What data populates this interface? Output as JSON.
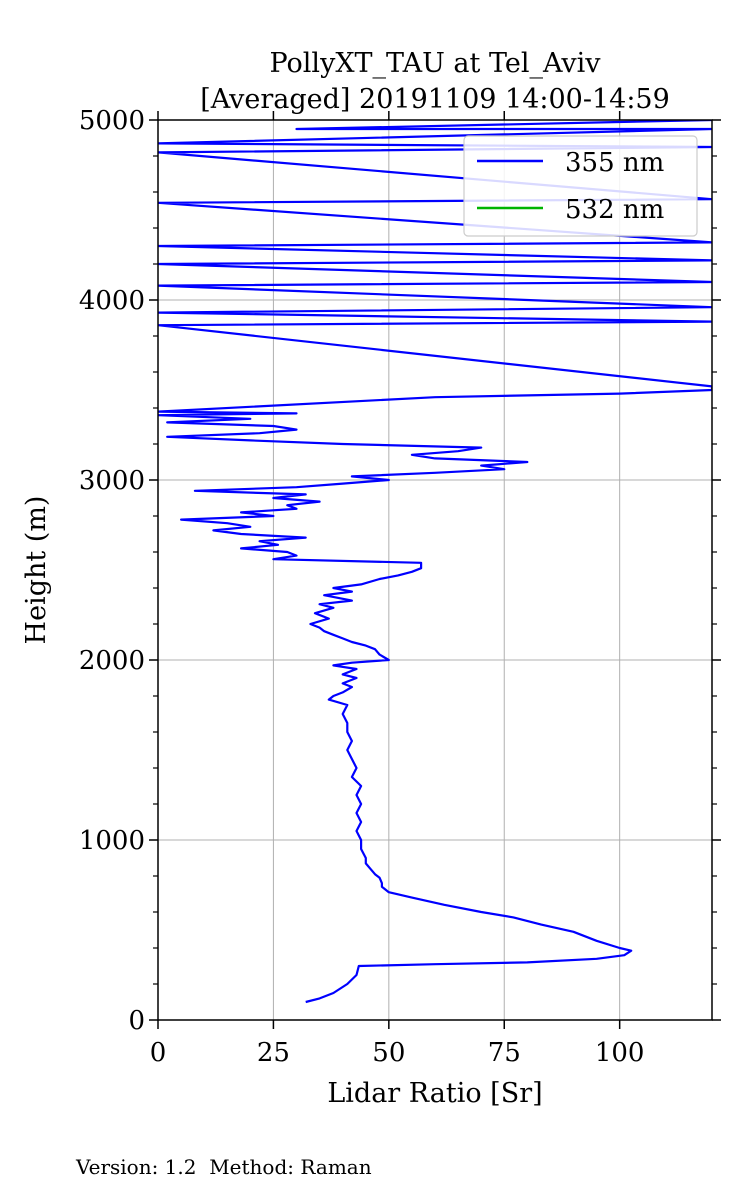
{
  "chart_data": {
    "type": "line",
    "title_line1": "PollyXT_TAU at Tel_Aviv",
    "title_line2": "[Averaged] 20191109 14:00-14:59",
    "xlabel": "Lidar Ratio [Sr]",
    "ylabel": "Height (m)",
    "xlim": [
      0,
      120
    ],
    "ylim": [
      0,
      5000
    ],
    "xticks": [
      0,
      25,
      50,
      75,
      100
    ],
    "xtick_labels": [
      "0",
      "25",
      "50",
      "75",
      "100"
    ],
    "yticks": [
      0,
      1000,
      2000,
      3000,
      4000,
      5000
    ],
    "ytick_labels": [
      "0",
      "1000",
      "2000",
      "3000",
      "4000",
      "5000"
    ],
    "grid": true,
    "legend_position": "top-right",
    "series": [
      {
        "name": "355 nm",
        "color": "#0000ff",
        "points": [
          [
            32,
            100
          ],
          [
            35,
            120
          ],
          [
            38,
            150
          ],
          [
            41,
            200
          ],
          [
            43,
            250
          ],
          [
            43.5,
            300
          ],
          [
            60,
            310
          ],
          [
            80,
            320
          ],
          [
            95,
            340
          ],
          [
            101,
            360
          ],
          [
            102.5,
            385
          ],
          [
            100,
            400
          ],
          [
            95,
            440
          ],
          [
            90,
            490
          ],
          [
            83,
            530
          ],
          [
            77,
            570
          ],
          [
            70,
            600
          ],
          [
            62,
            640
          ],
          [
            55,
            680
          ],
          [
            50,
            710
          ],
          [
            48.5,
            740
          ],
          [
            48.5,
            760
          ],
          [
            48,
            790
          ],
          [
            47,
            810
          ],
          [
            46,
            840
          ],
          [
            45,
            870
          ],
          [
            45,
            900
          ],
          [
            44,
            950
          ],
          [
            44,
            1000
          ],
          [
            43,
            1050
          ],
          [
            44,
            1100
          ],
          [
            43,
            1150
          ],
          [
            44,
            1200
          ],
          [
            43,
            1250
          ],
          [
            44,
            1300
          ],
          [
            42,
            1350
          ],
          [
            43,
            1400
          ],
          [
            42,
            1450
          ],
          [
            41,
            1500
          ],
          [
            42,
            1550
          ],
          [
            41,
            1600
          ],
          [
            41,
            1650
          ],
          [
            40,
            1700
          ],
          [
            41,
            1750
          ],
          [
            37,
            1780
          ],
          [
            38,
            1800
          ],
          [
            40,
            1820
          ],
          [
            42,
            1850
          ],
          [
            40,
            1870
          ],
          [
            43,
            1900
          ],
          [
            40,
            1920
          ],
          [
            43,
            1950
          ],
          [
            38,
            1970
          ],
          [
            42,
            1985
          ],
          [
            50,
            2000
          ],
          [
            48,
            2030
          ],
          [
            47,
            2060
          ],
          [
            45,
            2080
          ],
          [
            42,
            2100
          ],
          [
            40,
            2120
          ],
          [
            38,
            2140
          ],
          [
            36,
            2160
          ],
          [
            35,
            2180
          ],
          [
            33,
            2200
          ],
          [
            37,
            2230
          ],
          [
            34,
            2260
          ],
          [
            38,
            2290
          ],
          [
            35,
            2310
          ],
          [
            42,
            2330
          ],
          [
            36,
            2360
          ],
          [
            42,
            2380
          ],
          [
            38,
            2400
          ],
          [
            44,
            2420
          ],
          [
            48,
            2450
          ],
          [
            52,
            2470
          ],
          [
            55,
            2490
          ],
          [
            57,
            2510
          ],
          [
            57,
            2540
          ],
          [
            25,
            2560
          ],
          [
            30,
            2580
          ],
          [
            28,
            2600
          ],
          [
            18,
            2620
          ],
          [
            26,
            2640
          ],
          [
            22,
            2660
          ],
          [
            32,
            2680
          ],
          [
            18,
            2700
          ],
          [
            12,
            2720
          ],
          [
            20,
            2740
          ],
          [
            15,
            2760
          ],
          [
            5,
            2780
          ],
          [
            25,
            2800
          ],
          [
            18,
            2820
          ],
          [
            30,
            2840
          ],
          [
            28,
            2860
          ],
          [
            35,
            2880
          ],
          [
            25,
            2900
          ],
          [
            32,
            2920
          ],
          [
            8,
            2940
          ],
          [
            30,
            2960
          ],
          [
            40,
            2980
          ],
          [
            50,
            3000
          ],
          [
            42,
            3020
          ],
          [
            60,
            3040
          ],
          [
            75,
            3060
          ],
          [
            70,
            3080
          ],
          [
            80,
            3100
          ],
          [
            60,
            3120
          ],
          [
            55,
            3140
          ],
          [
            65,
            3160
          ],
          [
            70,
            3180
          ],
          [
            40,
            3200
          ],
          [
            20,
            3220
          ],
          [
            2,
            3240
          ],
          [
            22,
            3260
          ],
          [
            30,
            3280
          ],
          [
            25,
            3300
          ],
          [
            2,
            3320
          ],
          [
            20,
            3340
          ],
          [
            0,
            3360
          ],
          [
            30,
            3370
          ],
          [
            0,
            3380
          ],
          [
            60,
            3460
          ],
          [
            100,
            3480
          ],
          [
            120,
            3500
          ],
          [
            120,
            3520
          ],
          [
            0,
            3860
          ],
          [
            120,
            3880
          ],
          [
            0,
            3930
          ],
          [
            120,
            3960
          ],
          [
            0,
            4080
          ],
          [
            120,
            4100
          ],
          [
            0,
            4200
          ],
          [
            120,
            4220
          ],
          [
            0,
            4300
          ],
          [
            120,
            4320
          ],
          [
            0,
            4540
          ],
          [
            120,
            4560
          ],
          [
            0,
            4820
          ],
          [
            120,
            4850
          ],
          [
            0,
            4870
          ],
          [
            120,
            4950
          ],
          [
            30,
            4950
          ],
          [
            120,
            5000
          ]
        ]
      },
      {
        "name": "532 nm",
        "color": "#00b400",
        "points": []
      }
    ]
  },
  "footer": {
    "text": "Version: 1.2  Method: Raman"
  }
}
